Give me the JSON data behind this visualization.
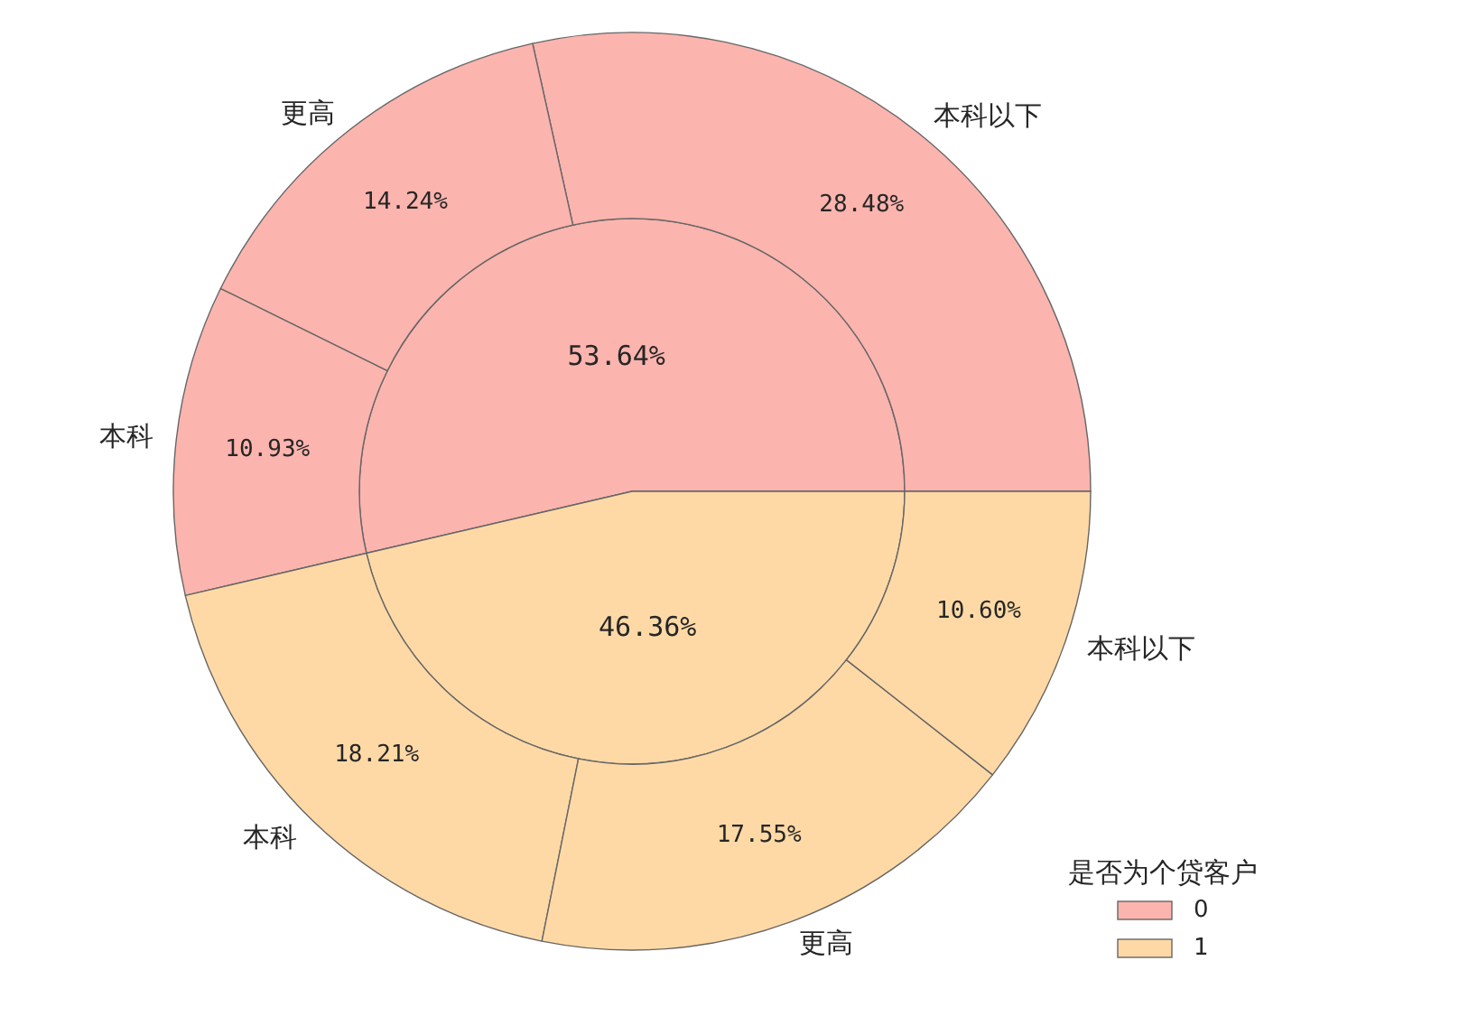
{
  "chart_data": [
    {
      "type": "pie",
      "categories": [
        "0",
        "1"
      ],
      "values": [
        53.64,
        46.36
      ],
      "colors": [
        "#fbb4ae",
        "#fed9a6"
      ],
      "value_labels": [
        "53.64%",
        "46.36%"
      ],
      "legend": "bottom right",
      "legend_title": "是否为个贷客户"
    },
    {
      "type": "donut",
      "categories": [
        "本科以下",
        "更高",
        "本科",
        "本科",
        "更高",
        "本科以下"
      ],
      "values": [
        28.48,
        14.24,
        10.93,
        18.21,
        17.55,
        10.6
      ],
      "colors": [
        "#fbb4ae",
        "#fbb4ae",
        "#fbb4ae",
        "#fed9a6",
        "#fed9a6",
        "#fed9a6"
      ],
      "value_labels": [
        "28.48%",
        "14.24%",
        "10.93%",
        "18.21%",
        "17.55%",
        "10.60%"
      ]
    }
  ]
}
